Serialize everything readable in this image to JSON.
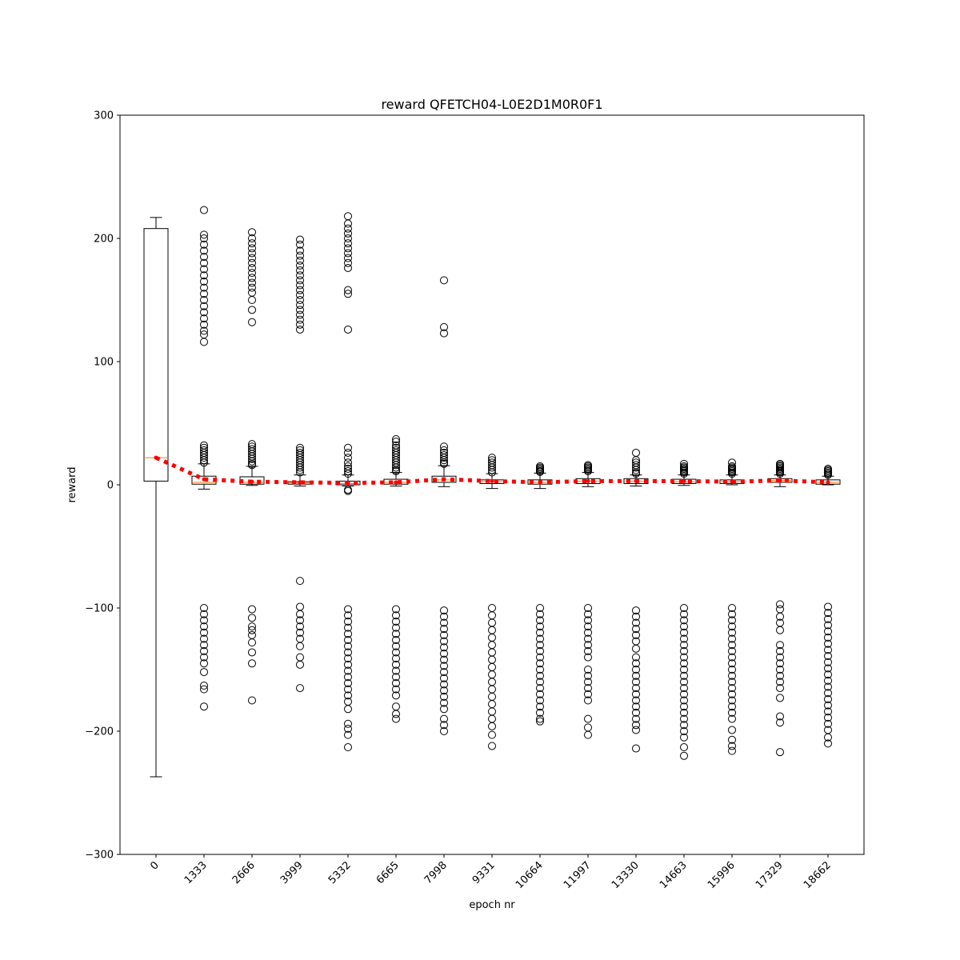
{
  "chart_data": {
    "type": "box",
    "title": "reward QFETCH04-L0E2D1M0R0F1",
    "xlabel": "epoch nr",
    "ylabel": "reward",
    "ylim": [
      -300,
      300
    ],
    "yticks": [
      300,
      200,
      100,
      0,
      -100,
      -200,
      -300
    ],
    "categories": [
      "0",
      "1333",
      "2666",
      "3999",
      "5332",
      "6665",
      "7998",
      "9331",
      "10664",
      "11997",
      "13330",
      "14663",
      "15996",
      "17329",
      "18662"
    ],
    "boxes": [
      {
        "q1": 3,
        "median": 22,
        "q3": 208,
        "whislo": -237,
        "whishi": 217,
        "mean": 22,
        "fliers_high": [],
        "fliers_low": []
      },
      {
        "q1": 0.5,
        "median": 2,
        "q3": 7,
        "whislo": -3.5,
        "whishi": 17,
        "mean": 4.5,
        "fliers_high": [
          223,
          203,
          200,
          195,
          190,
          185,
          180,
          175,
          170,
          165,
          160,
          155,
          150,
          145,
          140,
          135,
          130,
          125,
          122,
          116,
          32,
          30,
          28,
          26,
          24,
          22,
          20,
          18
        ],
        "fliers_low": [
          -100,
          -105,
          -110,
          -115,
          -120,
          -125,
          -130,
          -135,
          -140,
          -145,
          -152,
          -163,
          -166,
          -180
        ]
      },
      {
        "q1": 0.5,
        "median": 2,
        "q3": 6.5,
        "whislo": -0.5,
        "whishi": 15,
        "mean": 2.5,
        "fliers_high": [
          205,
          200,
          196,
          192,
          188,
          184,
          180,
          176,
          172,
          168,
          164,
          160,
          156,
          150,
          142,
          132,
          33,
          31,
          29,
          27,
          25,
          23,
          21,
          19,
          17,
          16
        ],
        "fliers_low": [
          -101,
          -108,
          -115,
          -118,
          -122,
          -128,
          -136,
          -145,
          -175
        ]
      },
      {
        "q1": 0.5,
        "median": 1.5,
        "q3": 2.5,
        "whislo": -1,
        "whishi": 8,
        "mean": 2,
        "fliers_high": [
          199,
          195,
          190,
          186,
          182,
          178,
          174,
          170,
          166,
          162,
          158,
          154,
          150,
          146,
          142,
          138,
          134,
          130,
          126,
          30,
          28,
          26,
          24,
          22,
          20,
          18,
          16,
          14,
          12,
          10
        ],
        "fliers_low": [
          -78,
          -99,
          -105,
          -110,
          -115,
          -120,
          -125,
          -131,
          -140,
          -146,
          -165
        ]
      },
      {
        "q1": 0,
        "median": 1,
        "q3": 3,
        "whislo": -1,
        "whishi": 8,
        "mean": 1.5,
        "fliers_high": [
          218,
          212,
          208,
          204,
          200,
          196,
          192,
          188,
          184,
          180,
          176,
          158,
          155,
          126,
          30,
          26,
          22,
          18,
          15,
          13,
          11,
          9,
          -4,
          -5
        ],
        "fliers_low": [
          -101,
          -106,
          -111,
          -116,
          -121,
          -126,
          -131,
          -136,
          -141,
          -146,
          -151,
          -156,
          -161,
          -166,
          -171,
          -176,
          -182,
          -194,
          -198,
          -203,
          -213
        ]
      },
      {
        "q1": 0.5,
        "median": 2,
        "q3": 4.5,
        "whislo": -1,
        "whishi": 10,
        "mean": 2,
        "fliers_high": [
          37,
          35,
          32,
          30,
          28,
          26,
          24,
          22,
          20,
          18,
          16,
          14,
          12,
          11
        ],
        "fliers_low": [
          -101,
          -106,
          -111,
          -116,
          -121,
          -126,
          -131,
          -136,
          -141,
          -146,
          -151,
          -156,
          -161,
          -166,
          -171,
          -180,
          -186,
          -190
        ]
      },
      {
        "q1": 2,
        "median": 4,
        "q3": 7,
        "whislo": -1.5,
        "whishi": 15.5,
        "mean": 4.5,
        "fliers_high": [
          166,
          128,
          123,
          31,
          28,
          26,
          24,
          22,
          20,
          18,
          17
        ],
        "fliers_low": [
          -102,
          -107,
          -112,
          -117,
          -122,
          -127,
          -132,
          -137,
          -142,
          -147,
          -152,
          -157,
          -162,
          -167,
          -172,
          -177,
          -182,
          -190,
          -195,
          -200
        ]
      },
      {
        "q1": 1,
        "median": 2.5,
        "q3": 4,
        "whislo": -3,
        "whishi": 9,
        "mean": 3,
        "fliers_high": [
          22,
          20,
          18,
          16,
          14,
          12,
          10
        ],
        "fliers_low": [
          -100,
          -106,
          -112,
          -118,
          -124,
          -130,
          -136,
          -142,
          -148,
          -154,
          -160,
          -166,
          -172,
          -178,
          -184,
          -190,
          -196,
          -203,
          -212
        ]
      },
      {
        "q1": 0.5,
        "median": 2,
        "q3": 4,
        "whislo": -3,
        "whishi": 9.5,
        "mean": 2,
        "fliers_high": [
          15,
          14,
          13,
          12,
          11,
          10.5
        ],
        "fliers_low": [
          -100,
          -105,
          -110,
          -115,
          -120,
          -125,
          -130,
          -135,
          -140,
          -145,
          -150,
          -155,
          -160,
          -165,
          -170,
          -175,
          -180,
          -185,
          -190,
          -192
        ]
      },
      {
        "q1": 1,
        "median": 3,
        "q3": 5,
        "whislo": -1.5,
        "whishi": 10,
        "mean": 3,
        "fliers_high": [
          16,
          15,
          14,
          13,
          12,
          11
        ],
        "fliers_low": [
          -100,
          -105,
          -110,
          -115,
          -120,
          -125,
          -130,
          -135,
          -140,
          -150,
          -155,
          -160,
          -165,
          -170,
          -175,
          -190,
          -197,
          -203
        ]
      },
      {
        "q1": 1,
        "median": 3,
        "q3": 5,
        "whislo": -1,
        "whishi": 8,
        "mean": 3,
        "fliers_high": [
          26,
          20,
          18,
          16,
          14,
          12,
          10,
          9
        ],
        "fliers_low": [
          -102,
          -107,
          -112,
          -117,
          -122,
          -127,
          -133,
          -140,
          -145,
          -150,
          -155,
          -160,
          -165,
          -170,
          -175,
          -180,
          -185,
          -190,
          -195,
          -199,
          -214
        ]
      },
      {
        "q1": 1,
        "median": 2.5,
        "q3": 4.5,
        "whislo": -0.5,
        "whishi": 8,
        "mean": 3,
        "fliers_high": [
          17,
          15,
          14,
          13,
          12,
          11,
          10,
          9
        ],
        "fliers_low": [
          -100,
          -105,
          -110,
          -115,
          -120,
          -125,
          -130,
          -135,
          -140,
          -145,
          -150,
          -155,
          -160,
          -165,
          -170,
          -175,
          -180,
          -185,
          -190,
          -195,
          -200,
          -205,
          -213,
          -220
        ]
      },
      {
        "q1": 1,
        "median": 2.5,
        "q3": 4,
        "whislo": 0,
        "whishi": 8,
        "mean": 2.5,
        "fliers_high": [
          18,
          15,
          14,
          13,
          12,
          11,
          10,
          9
        ],
        "fliers_low": [
          -100,
          -105,
          -110,
          -115,
          -120,
          -125,
          -130,
          -135,
          -140,
          -145,
          -150,
          -155,
          -160,
          -165,
          -170,
          -175,
          -180,
          -185,
          -190,
          -199,
          -207,
          -212,
          -216
        ]
      },
      {
        "q1": 2,
        "median": 3.5,
        "q3": 5,
        "whislo": -1.5,
        "whishi": 8,
        "mean": 3.5,
        "fliers_high": [
          17,
          16,
          15,
          14,
          13,
          12,
          11,
          10,
          9
        ],
        "fliers_low": [
          -97,
          -101,
          -107,
          -112,
          -118,
          -130,
          -135,
          -140,
          -145,
          -150,
          -155,
          -160,
          -165,
          -173,
          -188,
          -193,
          -217
        ]
      },
      {
        "q1": 0.5,
        "median": 2,
        "q3": 4,
        "whislo": 0,
        "whishi": 7,
        "mean": 2,
        "fliers_high": [
          13,
          12,
          11,
          10,
          9,
          8
        ],
        "fliers_low": [
          -99,
          -104,
          -109,
          -114,
          -119,
          -124,
          -129,
          -134,
          -139,
          -144,
          -149,
          -154,
          -159,
          -164,
          -169,
          -174,
          -179,
          -184,
          -189,
          -194,
          -199,
          -205,
          -210
        ]
      }
    ],
    "mean_line_color": "#ff0000",
    "median_color": "#ff7f0e",
    "box_color": "#000000",
    "grid": false
  }
}
